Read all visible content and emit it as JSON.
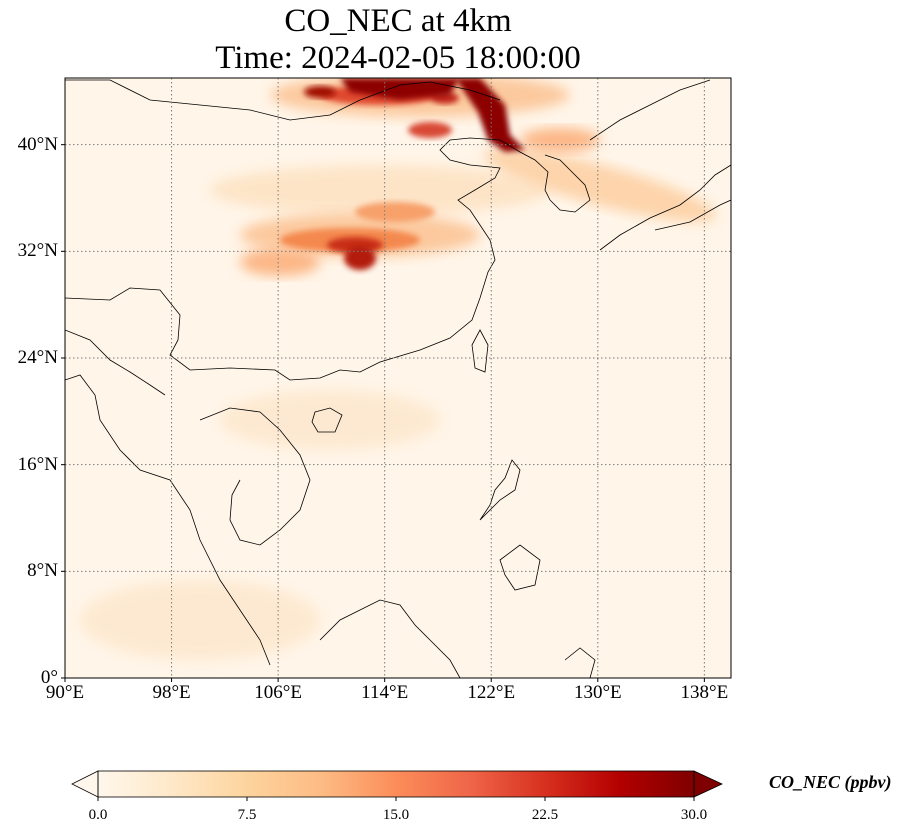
{
  "title": {
    "line1": "CO_NEC at 4km",
    "line2": "Time: 2024-02-05 18:00:00"
  },
  "map": {
    "lon_range": [
      90,
      140
    ],
    "lat_range": [
      0,
      45
    ],
    "lon_ticks": [
      {
        "value": 90,
        "label": "90°E"
      },
      {
        "value": 98,
        "label": "98°E"
      },
      {
        "value": 106,
        "label": "106°E"
      },
      {
        "value": 114,
        "label": "114°E"
      },
      {
        "value": 122,
        "label": "122°E"
      },
      {
        "value": 130,
        "label": "130°E"
      },
      {
        "value": 138,
        "label": "138°E"
      }
    ],
    "lat_ticks": [
      {
        "value": 0,
        "label": "0°"
      },
      {
        "value": 8,
        "label": "8°N"
      },
      {
        "value": 16,
        "label": "16°N"
      },
      {
        "value": 24,
        "label": "24°N"
      },
      {
        "value": 32,
        "label": "32°N"
      },
      {
        "value": 40,
        "label": "40°N"
      }
    ],
    "gridlines": true,
    "background_color": "#fff5e8"
  },
  "colorbar": {
    "label": "CO_NEC (ppbv)",
    "min": 0.0,
    "max": 30.0,
    "extend": "both",
    "ticks": [
      "0.0",
      "7.5",
      "15.0",
      "22.5",
      "30.0"
    ],
    "colormap": "OrRd",
    "colors": [
      "#fff7ec",
      "#fee8c8",
      "#fdd49e",
      "#fdbb84",
      "#fc8d59",
      "#ef6548",
      "#d7301f",
      "#b30000",
      "#7f0000"
    ]
  }
}
